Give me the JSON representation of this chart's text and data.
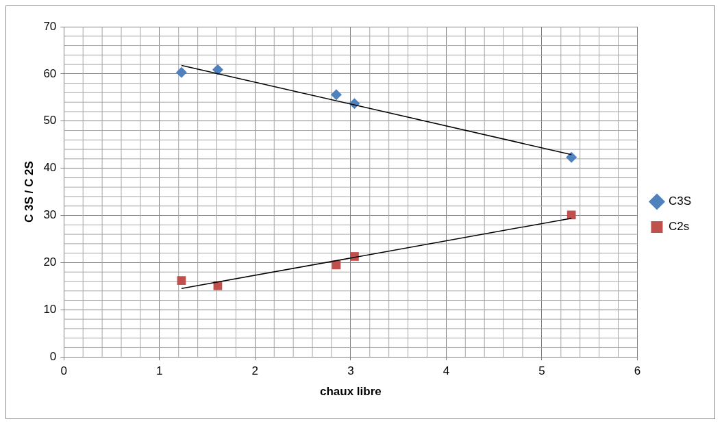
{
  "chart_data": {
    "type": "scatter",
    "xlabel": "chaux libre",
    "ylabel": "C 3S / C 2S",
    "xlim": [
      0,
      6
    ],
    "xticks": [
      0,
      1,
      2,
      3,
      4,
      5,
      6
    ],
    "ylim": [
      0,
      70
    ],
    "yticks": [
      0,
      10,
      20,
      30,
      40,
      50,
      60,
      70
    ],
    "grid": true,
    "legend": "right",
    "series": [
      {
        "name": "C3S",
        "color": "#4f81bd",
        "marker": "diamond",
        "x": [
          1.23,
          1.61,
          2.85,
          3.04,
          5.31
        ],
        "values": [
          60.3,
          60.9,
          55.6,
          53.7,
          42.3
        ]
      },
      {
        "name": "C2s",
        "color": "#c0504d",
        "marker": "square",
        "x": [
          1.23,
          1.61,
          2.85,
          3.04,
          5.31
        ],
        "values": [
          16.2,
          15.1,
          19.5,
          21.3,
          30.1
        ]
      },
      {
        "type": "line",
        "color": "#000000",
        "marker": "none",
        "x": [
          1.23,
          5.31
        ],
        "values": [
          61.8,
          42.9
        ]
      },
      {
        "type": "line",
        "color": "#000000",
        "marker": "none",
        "x": [
          1.23,
          5.31
        ],
        "values": [
          14.5,
          29.4
        ]
      }
    ]
  }
}
